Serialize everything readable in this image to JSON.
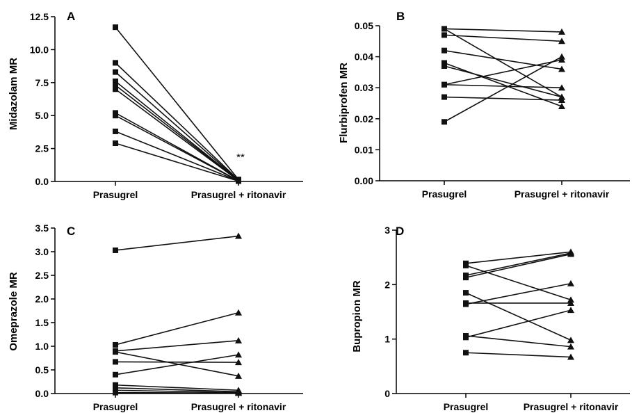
{
  "chart_data": [
    {
      "type": "line",
      "panel": "A",
      "ylabel": "Midazolam MR",
      "categories": [
        "Prasugrel",
        "Prasugrel + ritonavir"
      ],
      "ylim": [
        0,
        12.5
      ],
      "yticks": [
        0.0,
        2.5,
        5.0,
        7.5,
        10.0,
        12.5
      ],
      "ytick_labels": [
        "0.0",
        "2.5",
        "5.0",
        "7.5",
        "10.0",
        "12.5"
      ],
      "annotation": "**",
      "series": [
        {
          "values": [
            11.7,
            0.15
          ]
        },
        {
          "values": [
            9.0,
            0.12
          ]
        },
        {
          "values": [
            8.3,
            0.1
          ]
        },
        {
          "values": [
            7.6,
            0.08
          ]
        },
        {
          "values": [
            7.3,
            0.07
          ]
        },
        {
          "values": [
            7.0,
            0.06
          ]
        },
        {
          "values": [
            5.2,
            0.05
          ]
        },
        {
          "values": [
            5.0,
            0.04
          ]
        },
        {
          "values": [
            3.8,
            0.04
          ]
        },
        {
          "values": [
            2.9,
            0.03
          ]
        }
      ]
    },
    {
      "type": "line",
      "panel": "B",
      "ylabel": "Flurbiprofen MR",
      "categories": [
        "Prasugrel",
        "Prasugrel + ritonavir"
      ],
      "ylim": [
        0,
        0.05
      ],
      "yticks": [
        0.0,
        0.01,
        0.02,
        0.03,
        0.04,
        0.05
      ],
      "ytick_labels": [
        "0.00",
        "0.01",
        "0.02",
        "0.03",
        "0.04",
        "0.05"
      ],
      "series": [
        {
          "values": [
            0.049,
            0.048
          ]
        },
        {
          "values": [
            0.047,
            0.045
          ]
        },
        {
          "values": [
            0.042,
            0.036
          ]
        },
        {
          "values": [
            0.038,
            0.024
          ]
        },
        {
          "values": [
            0.037,
            0.027
          ]
        },
        {
          "values": [
            0.031,
            0.03
          ]
        },
        {
          "values": [
            0.031,
            0.039
          ]
        },
        {
          "values": [
            0.027,
            0.026
          ]
        },
        {
          "values": [
            0.019,
            0.04
          ]
        },
        {
          "values": [
            0.049,
            0.027
          ]
        }
      ]
    },
    {
      "type": "line",
      "panel": "C",
      "ylabel": "Omeprazole MR",
      "categories": [
        "Prasugrel",
        "Prasugrel + ritonavir"
      ],
      "ylim": [
        0,
        3.5
      ],
      "yticks": [
        0.0,
        0.5,
        1.0,
        1.5,
        2.0,
        2.5,
        3.0,
        3.5
      ],
      "ytick_labels": [
        "0.0",
        "0.5",
        "1.0",
        "1.5",
        "2.0",
        "2.5",
        "3.0",
        "3.5"
      ],
      "series": [
        {
          "values": [
            3.03,
            3.33
          ]
        },
        {
          "values": [
            1.03,
            1.71
          ]
        },
        {
          "values": [
            0.9,
            1.12
          ]
        },
        {
          "values": [
            0.88,
            0.37
          ]
        },
        {
          "values": [
            0.67,
            0.66
          ]
        },
        {
          "values": [
            0.4,
            0.82
          ]
        },
        {
          "values": [
            0.18,
            0.07
          ]
        },
        {
          "values": [
            0.12,
            0.04
          ]
        },
        {
          "values": [
            0.07,
            0.02
          ]
        },
        {
          "values": [
            0.02,
            0.01
          ]
        }
      ]
    },
    {
      "type": "line",
      "panel": "D",
      "ylabel": "Bupropion MR",
      "categories": [
        "Prasugrel",
        "Prasugrel + ritonavir"
      ],
      "ylim": [
        0,
        3
      ],
      "yticks": [
        0,
        1,
        2,
        3
      ],
      "ytick_labels": [
        "0",
        "1",
        "2",
        "3"
      ],
      "series": [
        {
          "values": [
            2.39,
            2.6
          ]
        },
        {
          "values": [
            2.35,
            1.72
          ]
        },
        {
          "values": [
            2.17,
            2.58
          ]
        },
        {
          "values": [
            2.13,
            2.56
          ]
        },
        {
          "values": [
            1.85,
            0.98
          ]
        },
        {
          "values": [
            1.66,
            1.66
          ]
        },
        {
          "values": [
            1.64,
            2.02
          ]
        },
        {
          "values": [
            1.06,
            0.86
          ]
        },
        {
          "values": [
            1.03,
            1.53
          ]
        },
        {
          "values": [
            0.75,
            0.67
          ]
        }
      ]
    }
  ]
}
